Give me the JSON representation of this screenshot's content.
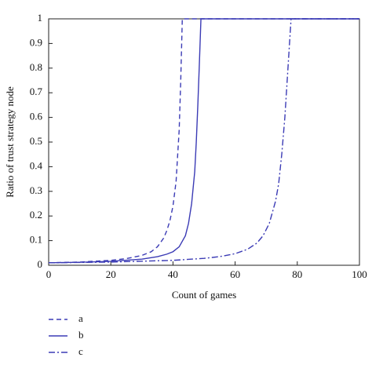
{
  "chart_data": {
    "type": "line",
    "xlabel": "Count of games",
    "ylabel": "Ratio of trust strategy node",
    "xlim": [
      0,
      100
    ],
    "xticks": [
      0,
      20,
      40,
      60,
      80,
      100
    ],
    "ylim": [
      0,
      1
    ],
    "yticks": [
      0,
      0.1,
      0.2,
      0.3,
      0.4,
      0.5,
      0.6,
      0.7,
      0.8,
      0.9,
      1
    ],
    "series": [
      {
        "name": "a",
        "color": "#3b3bb5",
        "dash": "dashed",
        "x": [
          0,
          10,
          20,
          25,
          30,
          33,
          35,
          37,
          38,
          39,
          40,
          41,
          42,
          42.5,
          43,
          100
        ],
        "values": [
          0.01,
          0.013,
          0.02,
          0.027,
          0.04,
          0.055,
          0.075,
          0.11,
          0.14,
          0.18,
          0.24,
          0.34,
          0.55,
          0.75,
          1,
          1
        ]
      },
      {
        "name": "b",
        "color": "#3b3bb5",
        "dash": "solid",
        "x": [
          0,
          10,
          20,
          30,
          35,
          38,
          40,
          42,
          44,
          45,
          46,
          47,
          47.5,
          48,
          48.5,
          49,
          100
        ],
        "values": [
          0.01,
          0.012,
          0.016,
          0.025,
          0.035,
          0.045,
          0.055,
          0.075,
          0.12,
          0.17,
          0.25,
          0.38,
          0.5,
          0.65,
          0.82,
          1,
          1
        ]
      },
      {
        "name": "c",
        "color": "#3b3bb5",
        "dash": "dashdot",
        "x": [
          0,
          20,
          40,
          50,
          55,
          60,
          64,
          67,
          69,
          71,
          73,
          74,
          75,
          76,
          77,
          78,
          100
        ],
        "values": [
          0.01,
          0.013,
          0.02,
          0.028,
          0.035,
          0.047,
          0.065,
          0.09,
          0.12,
          0.17,
          0.26,
          0.33,
          0.45,
          0.6,
          0.8,
          1,
          1
        ]
      }
    ]
  }
}
